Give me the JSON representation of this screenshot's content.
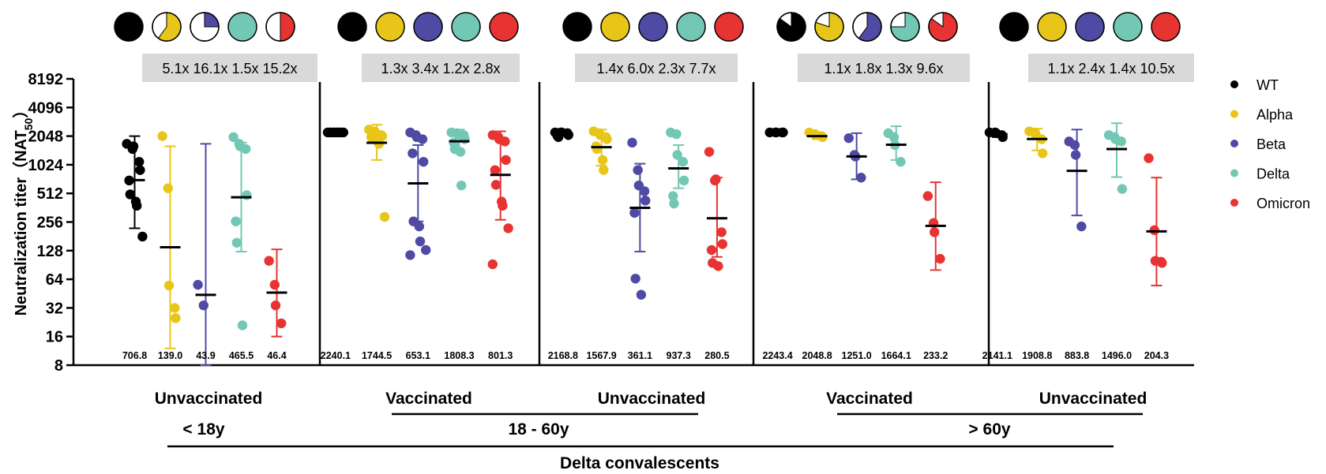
{
  "chart_data": {
    "type": "scatter",
    "title": "",
    "ylabel_main": "Neutralization  titer（NAT",
    "ylabel_sub": "50",
    "ylabel_close": "）",
    "y_scale": "log2",
    "ylim": [
      8,
      8192
    ],
    "y_ticks": [
      "8192",
      "4096",
      "2048",
      "1024",
      "512",
      "256",
      "128",
      "64",
      "32",
      "16",
      "8"
    ],
    "variants": [
      "WT",
      "Alpha",
      "Beta",
      "Delta",
      "Omicron"
    ],
    "colors": {
      "WT": "#000000",
      "Alpha": "#e8c619",
      "Beta": "#4f4aa3",
      "Delta": "#72c7b5",
      "Omicron": "#e83333"
    },
    "category_labels": [
      "Unvaccinated",
      "Vaccinated",
      "Unvaccinated",
      "Vaccinated",
      "Unvaccinated"
    ],
    "age_labels": [
      "< 18y",
      "18 - 60y",
      "> 60y"
    ],
    "group_label": "Delta convalescents",
    "panels": [
      {
        "fold_changes": "5.1x 16.1x 1.5x 15.2x",
        "icon_fill": [
          1,
          0.6,
          0.25,
          1,
          0.5
        ],
        "series": [
          {
            "name": "WT",
            "gmt": "706.8",
            "gmt_value": 706.8,
            "err": [
              220,
              2048
            ],
            "points": [
              1700,
              1500,
              1600,
              1100,
              900,
              700,
              500,
              420,
              380,
              180
            ]
          },
          {
            "name": "Alpha",
            "gmt": "139.0",
            "gmt_value": 139.0,
            "err": [
              12,
              1600
            ],
            "points": [
              2048,
              580,
              55,
              32,
              25
            ]
          },
          {
            "name": "Beta",
            "gmt": "43.9",
            "gmt_value": 43.9,
            "err": [
              8,
              1700
            ],
            "points": [
              56,
              34
            ]
          },
          {
            "name": "Delta",
            "gmt": "465.5",
            "gmt_value": 465.5,
            "err": [
              125,
              1750
            ],
            "points": [
              2000,
              1700,
              1600,
              1500,
              490,
              260,
              155,
              21
            ]
          },
          {
            "name": "Omicron",
            "gmt": "46.4",
            "gmt_value": 46.4,
            "err": [
              16,
              132
            ],
            "points": [
              100,
              56,
              34,
              22
            ]
          }
        ]
      },
      {
        "fold_changes": "1.3x 3.4x 1.2x 2.8x",
        "icon_fill": [
          1,
          1,
          1,
          1,
          1
        ],
        "series": [
          {
            "name": "WT",
            "gmt": "2240.1",
            "gmt_value": 2240.1,
            "err": [
              2240,
              2240
            ],
            "points": [
              2240,
              2240,
              2240,
              2240,
              2240,
              2240,
              2240,
              2240,
              2240,
              2240
            ]
          },
          {
            "name": "Alpha",
            "gmt": "1744.5",
            "gmt_value": 1744.5,
            "err": [
              1150,
              2700
            ],
            "points": [
              2400,
              2300,
              2200,
              2100,
              2048,
              2000,
              1950,
              1800,
              1700,
              290
            ]
          },
          {
            "name": "Beta",
            "gmt": "653.1",
            "gmt_value": 653.1,
            "err": [
              260,
              1650
            ],
            "points": [
              2240,
              2100,
              2000,
              1900,
              1100,
              1350,
              260,
              230,
              160,
              130,
              115
            ]
          },
          {
            "name": "Delta",
            "gmt": "1808.3",
            "gmt_value": 1808.3,
            "err": [
              1350,
              2400
            ],
            "points": [
              2240,
              2200,
              2150,
              2100,
              1900,
              1750,
              1500,
              1400,
              620
            ]
          },
          {
            "name": "Omicron",
            "gmt": "801.3",
            "gmt_value": 801.3,
            "err": [
              270,
              2300
            ],
            "points": [
              2100,
              2000,
              1900,
              1800,
              1150,
              900,
              630,
              420,
              380,
              220,
              92
            ]
          }
        ]
      },
      {
        "fold_changes": "1.4x 6.0x 2.3x 7.7x",
        "icon_fill": [
          1,
          1,
          1,
          1,
          1
        ],
        "series": [
          {
            "name": "WT",
            "gmt": "2168.8",
            "gmt_value": 2168.8,
            "err": [
              2050,
              2300
            ],
            "points": [
              2240,
              2240,
              2240,
              2200,
              2100,
              2050,
              2000
            ]
          },
          {
            "name": "Alpha",
            "gmt": "1567.9",
            "gmt_value": 1567.9,
            "err": [
              1000,
              2400
            ],
            "points": [
              2300,
              2200,
              2100,
              2000,
              1900,
              1600,
              1500,
              1150,
              900
            ]
          },
          {
            "name": "Beta",
            "gmt": "361.1",
            "gmt_value": 361.1,
            "err": [
              125,
              1050
            ],
            "points": [
              1750,
              900,
              620,
              540,
              430,
              320,
              65,
              44
            ]
          },
          {
            "name": "Delta",
            "gmt": "937.3",
            "gmt_value": 937.3,
            "err": [
              580,
              1650
            ],
            "points": [
              2240,
              2150,
              1300,
              1100,
              700,
              480,
              400
            ]
          },
          {
            "name": "Omicron",
            "gmt": "280.5",
            "gmt_value": 280.5,
            "err": [
              110,
              750
            ],
            "points": [
              1400,
              700,
              720,
              200,
              150,
              130,
              95,
              88
            ]
          }
        ]
      },
      {
        "fold_changes": "1.1x 1.8x 1.3x 9.6x",
        "icon_fill": [
          0.85,
          0.8,
          0.6,
          0.75,
          0.85
        ],
        "series": [
          {
            "name": "WT",
            "gmt": "2243.4",
            "gmt_value": 2243.4,
            "err": [
              2243,
              2243
            ],
            "points": [
              2240,
              2240,
              2240,
              2240,
              2240
            ]
          },
          {
            "name": "Alpha",
            "gmt": "2048.8",
            "gmt_value": 2048.8,
            "err": [
              1900,
              2200
            ],
            "points": [
              2240,
              2150,
              2100,
              2048,
              2000
            ]
          },
          {
            "name": "Beta",
            "gmt": "1251.0",
            "gmt_value": 1251.0,
            "err": [
              720,
              2200
            ],
            "points": [
              1950,
              1300,
              1250,
              750
            ]
          },
          {
            "name": "Delta",
            "gmt": "1664.1",
            "gmt_value": 1664.1,
            "err": [
              1150,
              2600
            ],
            "points": [
              2200,
              2000,
              1650,
              1100
            ]
          },
          {
            "name": "Omicron",
            "gmt": "233.2",
            "gmt_value": 233.2,
            "err": [
              80,
              670
            ],
            "points": [
              480,
              250,
              200,
              105
            ]
          }
        ]
      },
      {
        "fold_changes": "1.1x 2.4x 1.4x 10.5x",
        "icon_fill": [
          1,
          1,
          1,
          1,
          1
        ],
        "series": [
          {
            "name": "WT",
            "gmt": "2141.1",
            "gmt_value": 2141.1,
            "err": [
              2000,
              2300
            ],
            "points": [
              2240,
              2240,
              2200,
              2100,
              2000
            ]
          },
          {
            "name": "Alpha",
            "gmt": "1908.8",
            "gmt_value": 1908.8,
            "err": [
              1450,
              2450
            ],
            "points": [
              2300,
              2240,
              2100,
              1900,
              1350
            ]
          },
          {
            "name": "Beta",
            "gmt": "883.8",
            "gmt_value": 883.8,
            "err": [
              300,
              2400
            ],
            "points": [
              1800,
              1650,
              1300,
              230
            ]
          },
          {
            "name": "Delta",
            "gmt": "1496.0",
            "gmt_value": 1496.0,
            "err": [
              760,
              2800
            ],
            "points": [
              2100,
              2000,
              1900,
              1800,
              570
            ]
          },
          {
            "name": "Omicron",
            "gmt": "204.3",
            "gmt_value": 204.3,
            "err": [
              55,
              750
            ],
            "points": [
              1200,
              210,
              100,
              98,
              95
            ]
          }
        ]
      }
    ]
  }
}
